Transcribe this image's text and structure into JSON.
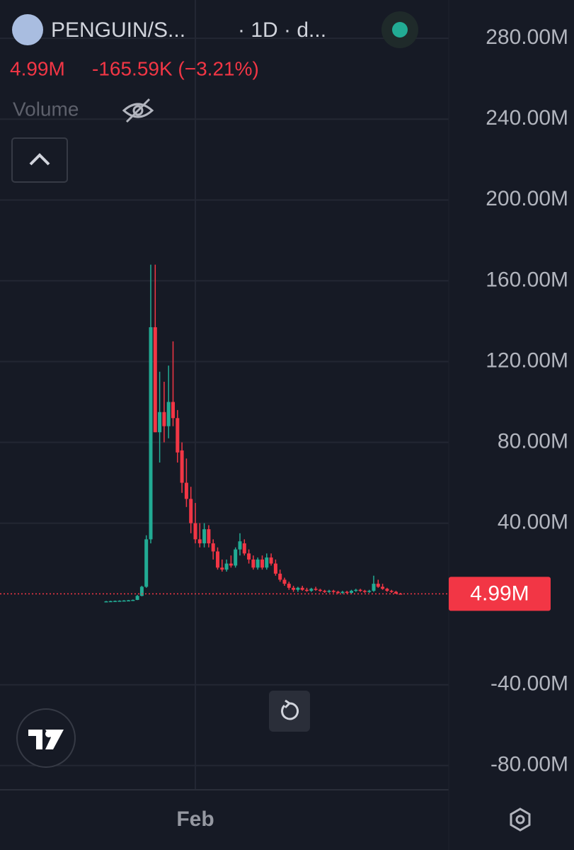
{
  "chart_data": {
    "type": "candlestick",
    "symbol": "PENGUIN/S...",
    "interval": "· 1D · d...",
    "change_label": "-165.59K (−3.21%)",
    "volume_label": "Volume",
    "last_price": {
      "value": 4.99,
      "label": "4.99M"
    },
    "up_color": "#22ab94",
    "down_color": "#f23645",
    "categories": [
      null,
      null,
      null,
      null,
      null,
      null,
      null,
      null,
      null,
      null,
      null,
      null,
      null,
      null,
      null,
      null,
      null,
      null,
      null,
      null,
      "Feb",
      null,
      null,
      null,
      null,
      null,
      null,
      null,
      null,
      null,
      null,
      null,
      null,
      null,
      null,
      null,
      null,
      null,
      null,
      null,
      null,
      null,
      null,
      null,
      null,
      null,
      null,
      null,
      null,
      null,
      null,
      null,
      null,
      null,
      null,
      null,
      null,
      null,
      null,
      null,
      null,
      null,
      null,
      null,
      null,
      null,
      null
    ],
    "open": [
      1.2,
      1.3,
      1.4,
      1.5,
      1.6,
      1.7,
      1.8,
      2.0,
      4.0,
      8.5,
      32,
      137,
      85,
      95,
      88,
      100,
      92,
      76,
      60,
      52,
      40,
      32,
      30,
      37,
      30,
      26,
      18,
      17,
      20,
      19,
      27,
      30,
      25,
      22,
      18,
      22,
      18,
      23,
      20,
      15,
      12,
      10,
      8,
      7,
      8,
      7,
      6.5,
      7.5,
      7,
      6.5,
      6,
      6.5,
      6,
      5.5,
      6,
      5.5,
      6.5,
      7,
      6.5,
      6,
      6.5,
      10,
      8.5,
      7.5,
      6.5,
      6,
      5.15
    ],
    "high": [
      1.5,
      1.6,
      1.7,
      1.8,
      1.9,
      2.0,
      2.2,
      4.5,
      9.0,
      34,
      168,
      168,
      115,
      110,
      118,
      130,
      96,
      80,
      72,
      58,
      50,
      40,
      40,
      39,
      32,
      28,
      22,
      22,
      24,
      28,
      35,
      32,
      27,
      24,
      23,
      24,
      25,
      25,
      22,
      17,
      13,
      11,
      9,
      8.5,
      9,
      8,
      8,
      8.5,
      7.5,
      7,
      7,
      7,
      6.5,
      6.5,
      6.5,
      7,
      7.5,
      7.5,
      7,
      7,
      14,
      12,
      10,
      8,
      7,
      6.5,
      5.5
    ],
    "low": [
      1.0,
      1.1,
      1.2,
      1.3,
      1.4,
      1.5,
      1.6,
      1.9,
      3.8,
      8.0,
      30,
      85,
      70,
      80,
      82,
      88,
      70,
      55,
      48,
      35,
      30,
      28,
      28,
      28,
      22,
      17,
      16,
      16,
      18,
      18,
      24,
      24,
      20,
      17,
      17,
      17,
      17,
      19,
      14,
      11,
      9,
      7,
      6,
      6,
      6.5,
      6,
      6,
      6.5,
      6,
      5.5,
      5.5,
      5.5,
      5,
      5,
      5,
      5,
      6,
      6,
      5.5,
      5.5,
      6,
      8,
      7,
      6,
      5.5,
      5,
      4.9
    ],
    "close": [
      1.3,
      1.4,
      1.5,
      1.6,
      1.7,
      1.8,
      2.0,
      4.0,
      8.5,
      32,
      137,
      85,
      95,
      88,
      100,
      92,
      75,
      60,
      52,
      40,
      32,
      30,
      37,
      30,
      26,
      18,
      17,
      20,
      19,
      27,
      31,
      25,
      22,
      18,
      22,
      18,
      23,
      20,
      15,
      12,
      10,
      8,
      7,
      8,
      7,
      6.5,
      7.5,
      7,
      6.5,
      6,
      6.5,
      6,
      5.5,
      6,
      5.5,
      6.5,
      7,
      6.5,
      6,
      6.5,
      10,
      8.5,
      7.5,
      6.5,
      6,
      5.15,
      4.99
    ],
    "ylim": [
      -92,
      299
    ],
    "yticks": [
      {
        "value": 280,
        "label": "280.00M"
      },
      {
        "value": 240,
        "label": "240.00M"
      },
      {
        "value": 200,
        "label": "200.00M"
      },
      {
        "value": 160,
        "label": "160.00M"
      },
      {
        "value": 120,
        "label": "120.00M"
      },
      {
        "value": 80,
        "label": "80.00M"
      },
      {
        "value": 40,
        "label": "40.00M"
      },
      {
        "value": -40,
        "label": "-40.00M"
      },
      {
        "value": -80,
        "label": "-80.00M"
      }
    ],
    "grid": true
  }
}
